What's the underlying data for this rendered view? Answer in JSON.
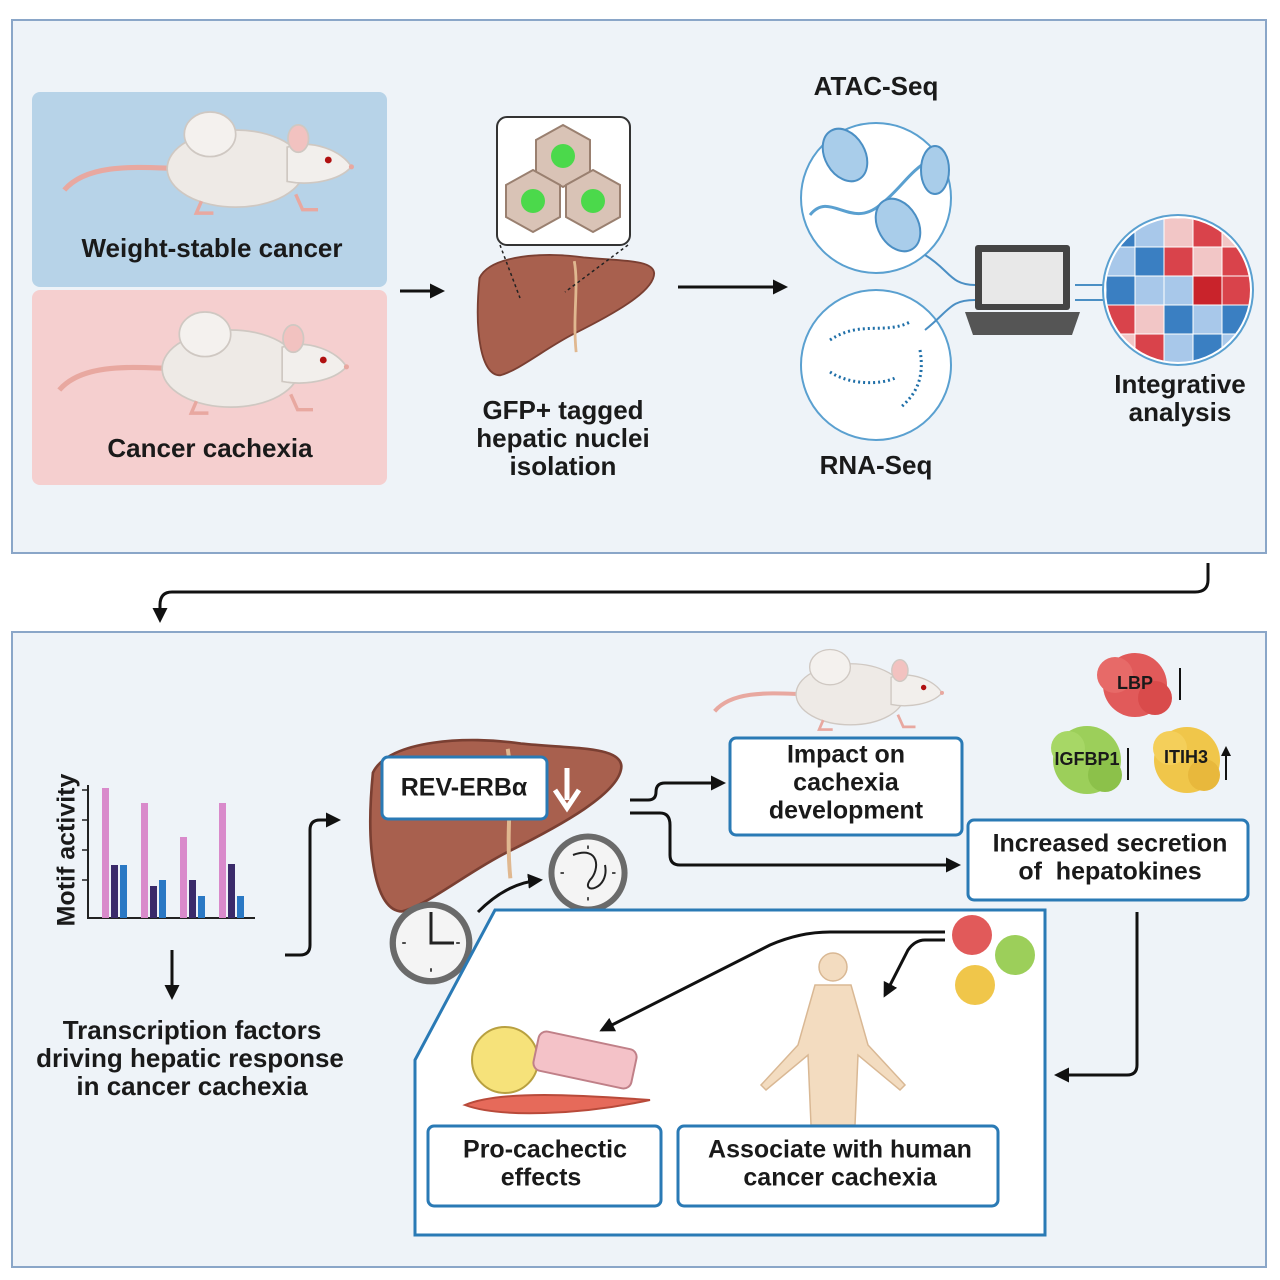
{
  "top_panel": {
    "groups": [
      {
        "label": "Weight-stable cancer"
      },
      {
        "label": "Cancer cachexia"
      }
    ],
    "isolation": {
      "lines": [
        "GFP+ tagged",
        "hepatic nuclei",
        "isolation"
      ]
    },
    "assays": [
      {
        "label": "ATAC-Seq"
      },
      {
        "label": "RNA-Seq"
      }
    ],
    "integration": {
      "lines": [
        "Integrative",
        "analysis"
      ]
    }
  },
  "bottom_panel": {
    "motif_chart": {
      "axis_label": "Motif activity"
    },
    "conclusion": {
      "lines": [
        "Transcription factors",
        "driving hepatic response",
        "in cancer cachexia"
      ]
    },
    "target": {
      "label": "REV-ERBα"
    },
    "impact": {
      "lines": [
        "Impact on",
        "cachexia",
        "development"
      ]
    },
    "hepatokines": [
      {
        "label": "LBP"
      },
      {
        "label": "IGFBP1"
      },
      {
        "label": "ITIH3"
      }
    ],
    "secretion": {
      "lines": [
        "Increased secretion",
        "of  hepatokines"
      ]
    },
    "effects": {
      "lines": [
        "Pro-cachectic",
        "effects"
      ]
    },
    "human": {
      "lines": [
        "Associate with human",
        "cancer cachexia"
      ]
    }
  }
}
